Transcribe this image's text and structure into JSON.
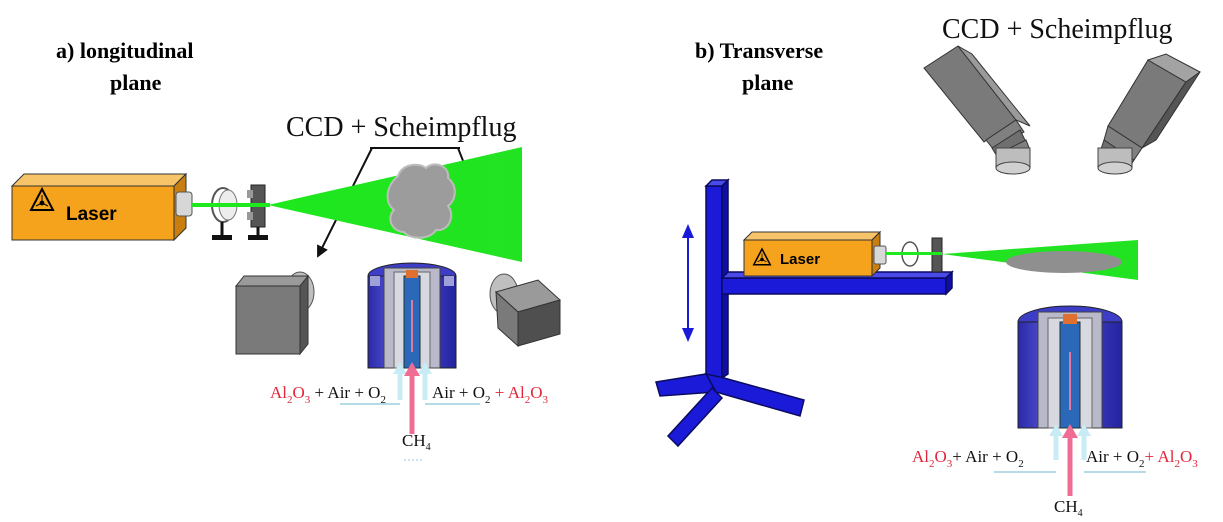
{
  "panel_a": {
    "label_line1": "a)  longitudinal",
    "label_line2": "plane",
    "camera_label": "CCD + Scheimpflug",
    "laser_label": "Laser",
    "feed_left": {
      "al": "Al",
      "al_sub": "2",
      "o": "O",
      "o_sub": "3",
      "rest": " + Air + O",
      "rest_sub": "2"
    },
    "feed_right": {
      "pre": "Air + O",
      "pre_sub": "2",
      "plus": " + ",
      "al": "Al",
      "al_sub": "2",
      "o": "O",
      "o_sub": "3"
    },
    "fuel": {
      "main": "CH",
      "sub": "4"
    }
  },
  "panel_b": {
    "label_line1": "b)  Transverse",
    "label_line2": "plane",
    "camera_label": "CCD + Scheimpflug",
    "laser_label": "Laser",
    "feed_left": {
      "al": "Al",
      "al_sub": "2",
      "o": "O",
      "o_sub": "3",
      "rest": "+ Air + O",
      "rest_sub": "2"
    },
    "feed_right": {
      "pre": "Air + O",
      "pre_sub": "2",
      "plus": "+ ",
      "al": "Al",
      "al_sub": "2",
      "o": "O",
      "o_sub": "3"
    },
    "fuel": {
      "main": "CH",
      "sub": "4"
    }
  },
  "colors": {
    "laser_body": "#f5a21c",
    "beam": "#1ee81e",
    "camera": "#6f6f6f",
    "stand": "#1a1ad8",
    "burner_outer": "#3d3dc8",
    "chem_red": "#e2263a",
    "fuel_arrow": "#ef6c95",
    "feed_arrow": "#c8ecf5"
  },
  "icons": [
    "laser-hazard-icon",
    "double-arrow-icon"
  ]
}
